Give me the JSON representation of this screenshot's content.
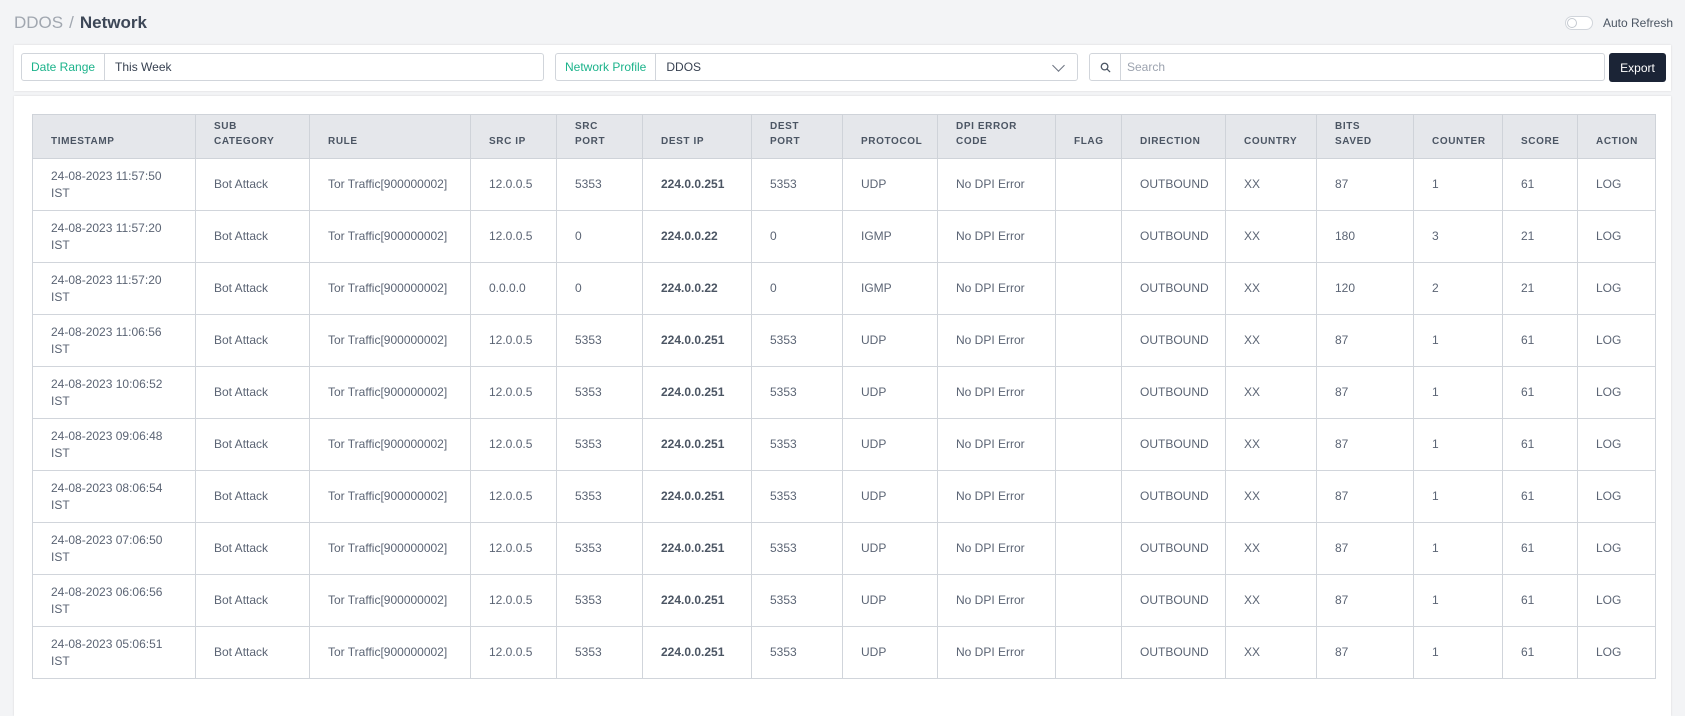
{
  "breadcrumb": {
    "root": "DDOS",
    "separator": "/",
    "current": "Network"
  },
  "auto_refresh": {
    "label": "Auto Refresh",
    "enabled": false
  },
  "filters": {
    "date_range": {
      "label": "Date Range",
      "value": "This Week"
    },
    "network_profile": {
      "label": "Network Profile",
      "value": "DDOS"
    },
    "search": {
      "placeholder": "Search",
      "value": ""
    },
    "export_label": "Export"
  },
  "icons": {
    "search": "search-icon",
    "dropdown": "chevron-down-icon"
  },
  "colors": {
    "accent": "#1cb38b",
    "export_bg": "#1b2436",
    "header_bg": "#e5e7eb"
  },
  "table": {
    "columns": [
      {
        "key": "timestamp",
        "label": "TIMESTAMP"
      },
      {
        "key": "sub_category",
        "label": "SUB CATEGORY"
      },
      {
        "key": "rule",
        "label": "RULE"
      },
      {
        "key": "src_ip",
        "label": "SRC IP"
      },
      {
        "key": "src_port",
        "label": "SRC PORT"
      },
      {
        "key": "dest_ip",
        "label": "DEST IP"
      },
      {
        "key": "dest_port",
        "label": "DEST PORT"
      },
      {
        "key": "protocol",
        "label": "PROTOCOL"
      },
      {
        "key": "dpi_error_code",
        "label": "DPI ERROR CODE"
      },
      {
        "key": "flag",
        "label": "FLAG"
      },
      {
        "key": "direction",
        "label": "DIRECTION"
      },
      {
        "key": "country",
        "label": "COUNTRY"
      },
      {
        "key": "bits_saved",
        "label": "BITS SAVED"
      },
      {
        "key": "counter",
        "label": "COUNTER"
      },
      {
        "key": "score",
        "label": "SCORE"
      },
      {
        "key": "action",
        "label": "ACTION"
      }
    ],
    "rows": [
      {
        "timestamp": "24-08-2023 11:57:50 IST",
        "sub_category": "Bot Attack",
        "rule": "Tor Traffic[900000002]",
        "src_ip": "12.0.0.5",
        "src_port": "5353",
        "dest_ip": "224.0.0.251",
        "dest_port": "5353",
        "protocol": "UDP",
        "dpi_error_code": "No DPI Error",
        "flag": "",
        "direction": "OUTBOUND",
        "country": "XX",
        "bits_saved": "87",
        "counter": "1",
        "score": "61",
        "action": "LOG"
      },
      {
        "timestamp": "24-08-2023 11:57:20 IST",
        "sub_category": "Bot Attack",
        "rule": "Tor Traffic[900000002]",
        "src_ip": "12.0.0.5",
        "src_port": "0",
        "dest_ip": "224.0.0.22",
        "dest_port": "0",
        "protocol": "IGMP",
        "dpi_error_code": "No DPI Error",
        "flag": "",
        "direction": "OUTBOUND",
        "country": "XX",
        "bits_saved": "180",
        "counter": "3",
        "score": "21",
        "action": "LOG"
      },
      {
        "timestamp": "24-08-2023 11:57:20 IST",
        "sub_category": "Bot Attack",
        "rule": "Tor Traffic[900000002]",
        "src_ip": "0.0.0.0",
        "src_port": "0",
        "dest_ip": "224.0.0.22",
        "dest_port": "0",
        "protocol": "IGMP",
        "dpi_error_code": "No DPI Error",
        "flag": "",
        "direction": "OUTBOUND",
        "country": "XX",
        "bits_saved": "120",
        "counter": "2",
        "score": "21",
        "action": "LOG"
      },
      {
        "timestamp": "24-08-2023 11:06:56 IST",
        "sub_category": "Bot Attack",
        "rule": "Tor Traffic[900000002]",
        "src_ip": "12.0.0.5",
        "src_port": "5353",
        "dest_ip": "224.0.0.251",
        "dest_port": "5353",
        "protocol": "UDP",
        "dpi_error_code": "No DPI Error",
        "flag": "",
        "direction": "OUTBOUND",
        "country": "XX",
        "bits_saved": "87",
        "counter": "1",
        "score": "61",
        "action": "LOG"
      },
      {
        "timestamp": "24-08-2023 10:06:52 IST",
        "sub_category": "Bot Attack",
        "rule": "Tor Traffic[900000002]",
        "src_ip": "12.0.0.5",
        "src_port": "5353",
        "dest_ip": "224.0.0.251",
        "dest_port": "5353",
        "protocol": "UDP",
        "dpi_error_code": "No DPI Error",
        "flag": "",
        "direction": "OUTBOUND",
        "country": "XX",
        "bits_saved": "87",
        "counter": "1",
        "score": "61",
        "action": "LOG"
      },
      {
        "timestamp": "24-08-2023 09:06:48 IST",
        "sub_category": "Bot Attack",
        "rule": "Tor Traffic[900000002]",
        "src_ip": "12.0.0.5",
        "src_port": "5353",
        "dest_ip": "224.0.0.251",
        "dest_port": "5353",
        "protocol": "UDP",
        "dpi_error_code": "No DPI Error",
        "flag": "",
        "direction": "OUTBOUND",
        "country": "XX",
        "bits_saved": "87",
        "counter": "1",
        "score": "61",
        "action": "LOG"
      },
      {
        "timestamp": "24-08-2023 08:06:54 IST",
        "sub_category": "Bot Attack",
        "rule": "Tor Traffic[900000002]",
        "src_ip": "12.0.0.5",
        "src_port": "5353",
        "dest_ip": "224.0.0.251",
        "dest_port": "5353",
        "protocol": "UDP",
        "dpi_error_code": "No DPI Error",
        "flag": "",
        "direction": "OUTBOUND",
        "country": "XX",
        "bits_saved": "87",
        "counter": "1",
        "score": "61",
        "action": "LOG"
      },
      {
        "timestamp": "24-08-2023 07:06:50 IST",
        "sub_category": "Bot Attack",
        "rule": "Tor Traffic[900000002]",
        "src_ip": "12.0.0.5",
        "src_port": "5353",
        "dest_ip": "224.0.0.251",
        "dest_port": "5353",
        "protocol": "UDP",
        "dpi_error_code": "No DPI Error",
        "flag": "",
        "direction": "OUTBOUND",
        "country": "XX",
        "bits_saved": "87",
        "counter": "1",
        "score": "61",
        "action": "LOG"
      },
      {
        "timestamp": "24-08-2023 06:06:56 IST",
        "sub_category": "Bot Attack",
        "rule": "Tor Traffic[900000002]",
        "src_ip": "12.0.0.5",
        "src_port": "5353",
        "dest_ip": "224.0.0.251",
        "dest_port": "5353",
        "protocol": "UDP",
        "dpi_error_code": "No DPI Error",
        "flag": "",
        "direction": "OUTBOUND",
        "country": "XX",
        "bits_saved": "87",
        "counter": "1",
        "score": "61",
        "action": "LOG"
      },
      {
        "timestamp": "24-08-2023 05:06:51 IST",
        "sub_category": "Bot Attack",
        "rule": "Tor Traffic[900000002]",
        "src_ip": "12.0.0.5",
        "src_port": "5353",
        "dest_ip": "224.0.0.251",
        "dest_port": "5353",
        "protocol": "UDP",
        "dpi_error_code": "No DPI Error",
        "flag": "",
        "direction": "OUTBOUND",
        "country": "XX",
        "bits_saved": "87",
        "counter": "1",
        "score": "61",
        "action": "LOG"
      }
    ]
  }
}
